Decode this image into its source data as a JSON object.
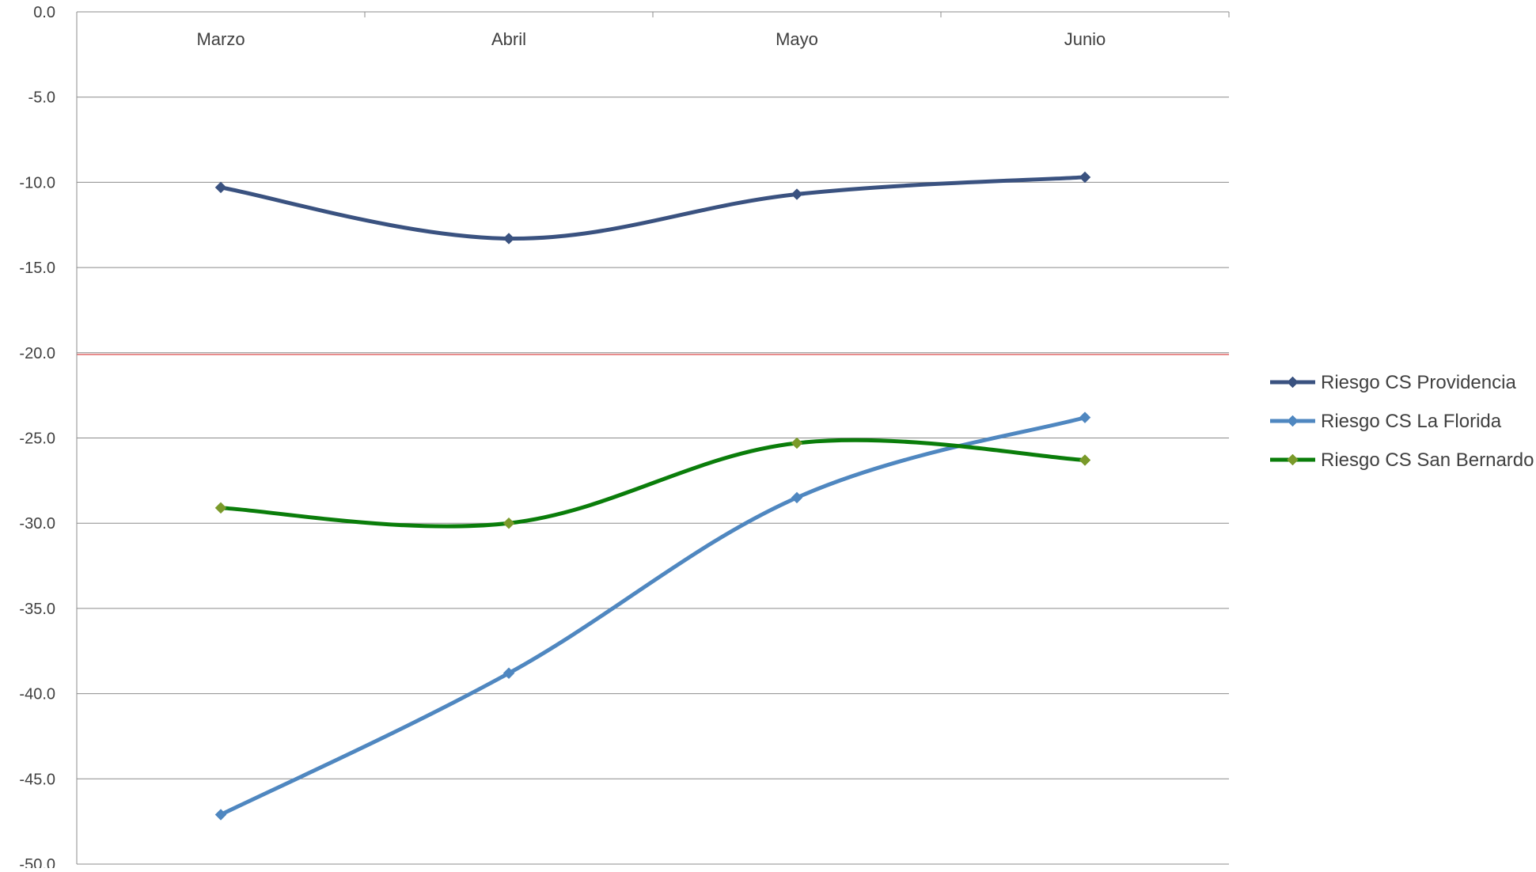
{
  "chart_data": {
    "type": "line",
    "title": "",
    "xlabel": "",
    "ylabel": "",
    "categories": [
      "Marzo",
      "Abril",
      "Mayo",
      "Junio"
    ],
    "ylim": [
      -50,
      0
    ],
    "y_ticks": [
      "0.0",
      "-5.0",
      "-10.0",
      "-15.0",
      "-20.0",
      "-25.0",
      "-30.0",
      "-35.0",
      "-40.0",
      "-45.0",
      "-50.0"
    ],
    "x_axis_position": "top",
    "grid": true,
    "smooth_lines": true,
    "legend_position": "right",
    "reference_line": {
      "value": -20.1,
      "color": "#e06666"
    },
    "series": [
      {
        "name": "Riesgo CS Providencia",
        "color": "#3a5280",
        "marker_color": "#3a5280",
        "values": [
          -10.3,
          -13.3,
          -10.7,
          -9.7
        ]
      },
      {
        "name": "Riesgo CS La Florida",
        "color": "#4f87c0",
        "marker_color": "#4f87c0",
        "values": [
          -47.1,
          -38.8,
          -28.5,
          -23.8
        ]
      },
      {
        "name": "Riesgo CS San Bernardo",
        "color": "#0a7d0a",
        "marker_color": "#7a9a2a",
        "values": [
          -29.1,
          -30.0,
          -25.3,
          -26.3
        ]
      }
    ]
  }
}
